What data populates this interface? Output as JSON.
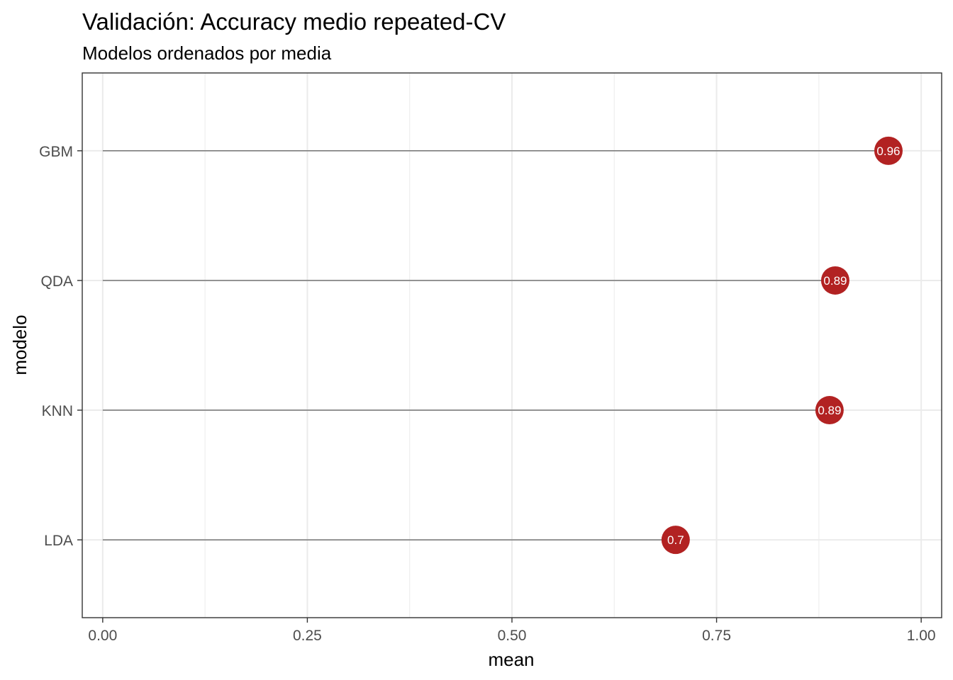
{
  "chart_data": {
    "type": "lollipop",
    "title": "Validación: Accuracy medio repeated-CV",
    "subtitle": "Modelos ordenados por media",
    "xlabel": "mean",
    "ylabel": "modelo",
    "xlim": [
      -0.025,
      1.025
    ],
    "x_ticks": [
      0.0,
      0.25,
      0.5,
      0.75,
      1.0
    ],
    "x_tick_labels": [
      "0.00",
      "0.25",
      "0.50",
      "0.75",
      "1.00"
    ],
    "categories": [
      "GBM",
      "QDA",
      "KNN",
      "LDA"
    ],
    "values": [
      0.96,
      0.895,
      0.888,
      0.7
    ],
    "labels": [
      "0.96",
      "0.89",
      "0.89",
      "0.7"
    ],
    "grid": true,
    "legend": "none",
    "colors": {
      "point": "#b22222",
      "segment": "#7f7f7f",
      "grid": "#ebebeb",
      "panel_border": "#333333",
      "point_label": "#ffffff"
    }
  }
}
